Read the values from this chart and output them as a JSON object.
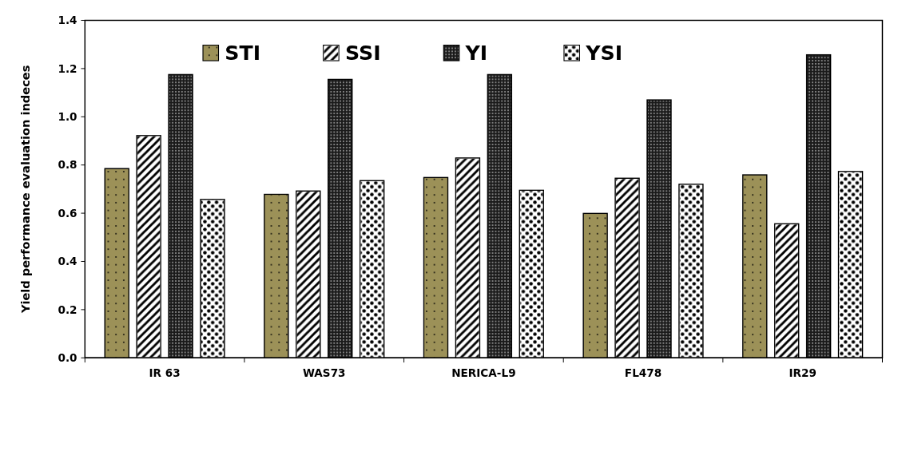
{
  "chart_data": {
    "type": "bar",
    "ylabel": "Yield performance evaluation indeces",
    "categories": [
      "IR 63",
      "WAS73",
      "NERICA-L9",
      "FL478",
      "IR29"
    ],
    "series": [
      {
        "name": "STI",
        "color": "#9c9158",
        "values": [
          0.785,
          0.678,
          0.748,
          0.599,
          0.759
        ]
      },
      {
        "name": "SSI",
        "color": "#ffffff",
        "values": [
          0.922,
          0.692,
          0.829,
          0.745,
          0.556
        ]
      },
      {
        "name": "YI",
        "color": "#1a1a1a",
        "values": [
          1.175,
          1.155,
          1.175,
          1.07,
          1.257
        ]
      },
      {
        "name": "YSI",
        "color": "#ffffff",
        "values": [
          0.657,
          0.735,
          0.695,
          0.72,
          0.773
        ]
      }
    ],
    "ylim": [
      0,
      1.4
    ],
    "yticks": [
      {
        "value": 0,
        "label": "0.0"
      },
      0.2,
      0.4,
      0.6,
      0.8,
      {
        "value": 1,
        "label": "1.0"
      },
      1.2,
      1.4
    ],
    "grid": false,
    "legend": "top"
  }
}
